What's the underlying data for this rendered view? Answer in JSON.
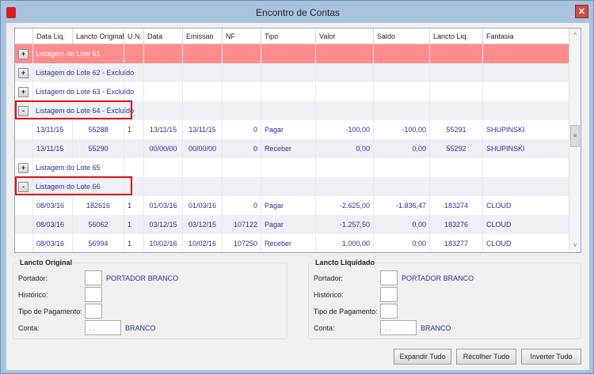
{
  "window": {
    "title": "Encontro de Contas",
    "close": "✕"
  },
  "grid": {
    "columns": [
      "Data Liq.",
      "Lancto Original",
      "U.N.",
      "Data",
      "Emissao",
      "NF",
      "Tipo",
      "Valor",
      "Saldo",
      "Lancto Liq.",
      "Fantasia"
    ],
    "rows": [
      {
        "type": "group",
        "label": "Listagem do Lote 61",
        "expander": "+",
        "selected": true
      },
      {
        "type": "group",
        "label": "Listagem do Lote 62 - Excluído",
        "expander": "+"
      },
      {
        "type": "group",
        "label": "Listagem do Lote 63 - Excluído",
        "expander": "+"
      },
      {
        "type": "group",
        "label": "Listagem do Lote 64 - Excluído",
        "expander": "-",
        "highlighted": true
      },
      {
        "type": "data",
        "cells": [
          "13/11/15",
          "55288",
          "1",
          "13/11/15",
          "13/11/15",
          "0",
          "Pagar",
          "-100,00",
          "-100,00",
          "55291",
          "SHUPINSKI"
        ]
      },
      {
        "type": "data",
        "cells": [
          "13/11/15",
          "55290",
          "",
          "00/00/00",
          "00/00/00",
          "0",
          "Receber",
          "0,00",
          "0,00",
          "55292",
          "SHUPINSKI"
        ]
      },
      {
        "type": "group",
        "label": "Listagem do Lote 65",
        "expander": "+"
      },
      {
        "type": "group",
        "label": "Listagem do Lote 66",
        "expander": "-",
        "highlighted": true
      },
      {
        "type": "data",
        "cells": [
          "08/03/16",
          "182616",
          "1",
          "01/03/16",
          "01/03/16",
          "0",
          "Pagar",
          "-2.625,00",
          "-1.836,47",
          "183274",
          "CLOUD"
        ]
      },
      {
        "type": "data",
        "cells": [
          "08/03/16",
          "56062",
          "1",
          "03/12/15",
          "03/12/15",
          "107122",
          "Pagar",
          "-1.257,50",
          "0,00",
          "183276",
          "CLOUD"
        ]
      },
      {
        "type": "data",
        "cells": [
          "08/03/16",
          "56994",
          "1",
          "10/02/16",
          "10/02/16",
          "107250",
          "Receber",
          "1.000,00",
          "0,00",
          "183277",
          "CLOUD"
        ]
      }
    ]
  },
  "lancto_original": {
    "title": "Lancto Original",
    "portador_label": "Portador:",
    "portador_value": "PORTADOR BRANCO",
    "historico_label": "Histórico:",
    "tipo_label": "Tipo de Pagamento:",
    "conta_label": "Conta:",
    "conta_input": ". .",
    "conta_value": "BRANCO"
  },
  "lancto_liquidado": {
    "title": "Lancto Liquidado",
    "portador_label": "Portador:",
    "portador_value": "PORTADOR BRANCO",
    "historico_label": "Histórico:",
    "tipo_label": "Tipo de Pagamento:",
    "conta_label": "Conta:",
    "conta_input": ". .",
    "conta_value": "BRANCO"
  },
  "buttons": {
    "expand": "Expandir Tudo",
    "collapse": "Recolher Tudo",
    "invert": "Inverter Tudo"
  },
  "colors": {
    "selected_row": "#ff8c8c",
    "text": "#2e2e9c",
    "highlight_border": "#e01010"
  }
}
